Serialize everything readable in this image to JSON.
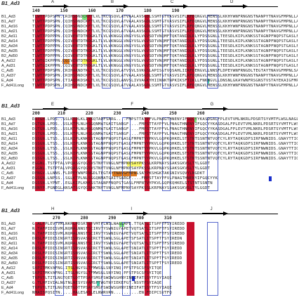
{
  "blocks": [
    {
      "ref_label": "B1_Ad3",
      "ss_labels": [
        "A",
        "B",
        "C",
        "D"
      ],
      "numbers": "140        150        160        170        180        190",
      "rows": [
        {
          "name": "B1_Ad3",
          "seq": "TLWTTPDPSPN.CRIHSDNDCKFTLVLTKCGSQVLATVAALAVSGDLSSMTGTVASVSIFLRFDQNGVLMENSSLKKHYWNFRNGNSTNANPYTNAVGFMPNLLAYPKTQSQTAKNNIVSQVYLHGDKTKPMILTITLNGTSESTETSEVSTYSMSFTWSWESGKYTTETFATNSYTFSYIAQE"
        },
        {
          "name": "B1_Ad7",
          "seq": "TLWTTPDPSPN.CQIHSDNDCKFTLVLTKCGSQVLATVAALAVSGDLSSMTGTVASVSIFLRFDQNGVLMENSSLKKHYWNFRNGNSTNANPYTNAVGFMPNLLAYPKTQSQTAKNNIVSQVYLHGDKTKPMILTITLNGTSESTETSEVSTYSMSFTWSWESGKYTTETFATNSYTFSYIAQE"
        },
        {
          "name": "B1_Ad16",
          "seq": "TLWTTPDPSPN.CQIHSDNDCKFTLVLTKCGSQVLATVAALAVSGDLSSMTGTVASVSIFLRFDQNGVLMENSSLKKHYWNFRNGNSTNANPYTNAVGFMPNLLAYPKTQSQTAKNNIVSQVYLHGDKTKPMILTITLNGTSESTETSEVSTYSMSFTWSWESGKYTTETFATNSYTFSYIAQE"
        },
        {
          "name": "B1_Ad21",
          "seq": "TLWTTPDPSPN.CQIHSDNDCKFTLVLTKCGSQVLATVAALAVSGDLSSMTGTVASVSIFLRFDQNGVLMENSSLKKHYWNFRNGNSTNANPYTNAVGFMPNLLAYPKTQSQTAKNNIVSQVYLHGDKTKPMILTITLNGTSESTETSEVSTYSMSFTWSWESGKYTTETFATNSYTFSYIAQE"
        },
        {
          "name": "B2_Ad11",
          "seq": "TLWTTPDPPPN.CQIVENTDTNDGKLTLVLVKNGGLVNGYVSLVGVSDTVNQMFTQKTANIQLRLYFDSSGNLLTEESDLKIPLKNKSSTAGNPFNQPSTGASLFMPNTVYPKVLGQPKQHKEL"
        },
        {
          "name": "B2_Ad14",
          "seq": "TLWTTPDPPPN.CQIVENTDTNDGKLTLVLVKNGGLVNGYVSLVGVSDTVNQMFTQKTANIQLRLYFDSSGNLLTEESDLKIPLKNKSSTAGNPFNQPSTGASLFMPNTVYPKVLGQPKQHKEL"
        },
        {
          "name": "B2_Ad34",
          "seq": "TLWTTPDPPPN.CQIVENTDTNDGKLTLVLVKNGGLVNGYVSLVGVSDTVNQMFTQKTANIQLRLYFDSSGNLLTEESDLKIPLKNKSSTAGNPFNQPSTGASLFMPNTVYPKVLGQPKQHKEL"
        },
        {
          "name": "B2_Ad35",
          "seq": "TLWTTPDPPPN.CQIVENTDTNDGKLTLVLVKNGGLVNGYVSLVGVSDTVNQMFTQKTANIQLRLYFDSSGNLLTEESDLKIPLKNKSSTAGNPFNQPSTGASLFMPNTVYPKVLGQPKQHKEL"
        },
        {
          "name": "B2_Ad50",
          "seq": "TLWTTPDPPPN.CQIVENTDTNDGKLTLVLVKNGGLVNGYVSLVGVSDTVNQMFTQKTANIQLRLYFDSSGNLLTEESDLKIPLKNKSSTAGNPFNQPSTGASLFMPNTVYPKVLGQPKQHKEL"
        },
        {
          "name": "A_Ad12",
          "seq": "TLWTGIKPPPN.CQIVENTDTNDGKLTLVLVKNGGLVNGYVSLVGVSDTVNQMFTQKTANIQLRLYFDSSGNLLTEESDLKIPLKNKSSTAGNPFNQPSTGASLFMPNTVYPKVLGQPKQHKEL"
        },
        {
          "name": "A_Ad31",
          "seq": "TLWTGIKPPPN.CQIVENTDTNDGKLTLVLVKNGGLVNGYVSLVGVSDTVNQMFTQKTANIQLRLYFDSSGNLLTEESDLKIPLKNKSSTAGNPFNQPSTGASLFMPNTVYPKVLGQPKQHKEL"
        },
        {
          "name": "C_Ad5",
          "seq": "TLWTTPDPSPN.CRIHAKNDTKLTLVLTKCGSQVLATVSVLSVKGSLAPISGTVQSAHLIIRFDENGVLLNNSFLDPEYWNFRNGDLTEGTAYTNAVGFMPNLSAYPKSHGKTAKSNIVSQVYLNGDKTKPVTLTITLNGTQETGDTTPSAYSMSFSWDWSGHNYINEIFATSSYTFSYIAQE"
        },
        {
          "name": "D_Ad37",
          "seq": "TLWTTPDPSPN.CRIHSDNDCKFTLVLTKCGSQVLATVAALAVSGDLSSMTGTVASVSIFLRFDQNGVLMENSSLKKHYWNFRNGNSTNANPYTNAVGFMPNLLAYPKTQSQTAKNNIVSQVYLHGDKTKPMILTITLNGTSESTETSEVSTYSMSFTWSWESGKYTTETFATNSYTFSYIAQE"
        },
        {
          "name": "E_Ad4",
          "seq": "TLWTTPDPSPN.CTIAQDKDSKLTLVLTKCGSQILANVSLIVVAGKYHIINNKTNPKIKSFTIKLLFNKNGVLLDNSNLGKAYWNFRSGNSTVSTAYEKAIGFMPNLVAYPKPSNSKKYARDIVYGTIYLGGKPDQPAVIKTTFNQETGCEYSITFNFSWSKTYENVEFETTSFTFSYIAQE"
        },
        {
          "name": "F_Ad41Long",
          "seq": "TLWTTPDPSPN.CRIHSDNDCKFTLVLTKCGSQVLATVAALAVSGDLSSMTGTVASVSIFLRFDQNGVLMENSSLKKHYWNFRNGNSTNANPYTNAVGFMPNLLAYPKTQSQTAKNNIVSQVYLHGDKTKPMILTITLNGTSESTETSEVSTYSMSFTWSWESGKYTTETFATNSYTFSYIAQE"
        }
      ]
    },
    {
      "ref_label": "B1_Ad3",
      "ss_labels": [
        "E",
        "F",
        "G"
      ],
      "numbers": "200       210        220        230        240        250        260",
      "rows": [
        {
          "name": "B1_Ad3",
          "seq": "DATGH.LPDS..SSLKTDLKLIYKQTADFSARG....FMPSTTAYPFVLPNAGTHNENYIFGQCYYKASDGALFPLEVTVMLNKRLPDSRTSYVMTFLWSLNAGLAPETTQATLITSPFTFSYIREDD"
        },
        {
          "name": "B1_Ad7",
          "seq": "DGTGN.LPDS..SSLKTPLNLHSGQNMATGAITSARGF....FMPSTTAYPFVLPNAGTHNENYIFGQCYYKASDGALFPLEVTVMLNKRLPDSRTSYVMTFLWSLNAGLAPETTQATLITSPFTFSYIREDD"
        },
        {
          "name": "B1_Ad16",
          "seq": "DGTGN.LPDS..SSLKTPLNLHSGQNMATGAITSARGF....FMPSTTAYPFVLPNAGTHNENYIFGQCYYKASDGALFPLEVTVMLNKRLPDSRTSYVMTFLWSLNAGLAPETTQATLITSPFTFSYIREDD"
        },
        {
          "name": "B1_Ad21",
          "seq": "DSTGN.LPDS..SSLKTPLNLHSGQNMATGAITSARGF....FMPSTTAYPFVLPNAGTHNENYIFGQCYYKASDGALFPLEVTVMLNKRLPDSRTSYVMTFLWSLNAGLAPETTQATLITSPFTFSYIREDN"
        },
        {
          "name": "B2_Ad11",
          "seq": "DSSGN.LTSS..SSLKIPLKNKSSTAGNPFNQPSTGASLFMPNTVYPKVLGQPKQHKELSTSTNTSSNTNTVQTCYLRYTAQKGDFSIRFNWNIDS.GNAYTTIGTIGGLTSKVT"
        },
        {
          "name": "B2_Ad14",
          "seq": "DSSGN.LTSS..SSLKIPLKNKSSTAGNPFNQPSTGASLFMPNTVYPKVLGQPKQHKELSTSTNTSSNTNTVQTCYLRYTAQKGDFSIRFNWNIDS.GNAYTTIGTIGGLTSKVT"
        },
        {
          "name": "B2_Ad34",
          "seq": "DSSGN.LTSS..SSLKIPLKNKSSTAGNPFNQPSTGASLFMPNTVYPKVLGQPKQHKELSTSTNTSSNTNTVQTCYLRYTAQKGDFSIRFNWNIDS.GNAYTTIGTIGGLTSKVT"
        },
        {
          "name": "B2_Ad35",
          "seq": "DSSGN.LTSS..SSLKIPLKNKSSTAGNPFNQPSTGASLFMPNTVYPKVLGQPKQHKELSTSTNTSSNTNTVQTCYLRYTAQKGDFSIRFNWNIDS.GNAYTTIGTIGGLTSKVT"
        },
        {
          "name": "B2_Ad50",
          "seq": "DSSGN.LTSS..SSLKIPLKNKSSTAGNPFNQPSTGASLFMPNTVYPKVLGQPKQHKELSTSTNTSSNTNTVQTCYLRYTAQKGDFSIRFNWNIDS.GNAYTTIGTIGGLTSKVT"
        },
        {
          "name": "A_Ad12",
          "seq": "EGGNL.TSTPTALVPQASGYQGSVSTNVTVNGLNFMPNVSAYPKSSLKRPNAYSSAKSGKVSLTYLGGDT"
        },
        {
          "name": "A_Ad31",
          "seq": "EGGNL.TSTPTALVPQASGYQGSVSTNVTVNGLNFMPNVSAYPKSSLKRPNAYSSAKSGKVSLTYLGGDT"
        },
        {
          "name": "C_Ad5",
          "seq": "DENGV.LLNNS.FLDPEYWNFRNGDLTEGTAYTNAVGFMPNLSAYPKSHGKTAKSNIVSQVYLNGDKT"
        },
        {
          "name": "D_Ad37",
          "seq": "DGSGN.LNPSS..SGLKTPLNLSSGQNMATGAITSARGF....FMPSTTAYPFVLPNAGTHNENYIFGQCYYK"
        },
        {
          "name": "E_Ad4",
          "seq": "DGSSN.LYPNT..EGLKIPLKNKSSTAGNPFNQPSTGASLFMPNTVYPKVLGQPKQHKELSTSTNTSSNTN"
        },
        {
          "name": "F_Ad41Long",
          "seq": "RKNYP.FGNEGLANSATSGYQGSAKTNVTVNGLNFMPNVSAYPKSSLKRPNAYSSAKSGKVSLTYLGGDT"
        }
      ]
    },
    {
      "ref_label": "B1_Ad3",
      "ss_labels": [
        "H",
        "I",
        "J"
      ],
      "numbers": "        270        280        290        300        310",
      "rows": [
        {
          "name": "B1_Ad3",
          "seq": "G.ALFPLEVTVMLNKRLPDSRTSYVMTFLWSLNAGLAPE.TTQATLITSPFTFSYIREDD"
        },
        {
          "name": "B1_Ad7",
          "seq": "N.TAFPIDISVMLNQRALNNSTSCIRVTYSWNIGYAPETVQTSATLITSPFTFSYIREDD"
        },
        {
          "name": "B1_Ad16",
          "seq": "N.TAFPIDISVMLNQRALNNSTSCIRVTYSWNIGYAPETVQTSATLITSPFTFSYIREDD"
        },
        {
          "name": "B1_Ad21",
          "seq": "DRSLFPIDISINSRTISNSVASGIRCTYSWNLSGLAPETSFSATLITSPFTFSYIREDN"
        },
        {
          "name": "B2_Ad11",
          "seq": "N.TAFPIDISVMLNQRALNNSTSCIRVTYSWNIGYAPETVQTSATLITSPFTFSYIREDD"
        },
        {
          "name": "B2_Ad14",
          "seq": "DRSLFPIDISINSRTISNSVASGIRCTYSWNLSGLAPETSNIATLITSPFTFSYIREDD"
        },
        {
          "name": "B2_Ad34",
          "seq": "DRSLFPIDISINSRTISNSVASGIRCTYSWNLSGLAPETSNIATLITSPFTFSYIREDD"
        },
        {
          "name": "B2_Ad35",
          "seq": "DRSLFPIDISINSRTISNSVASGIRCTYSWNLSGLAPETSNIATLITSPFTFSYIREDD"
        },
        {
          "name": "B2_Ad50",
          "seq": "DRSLFPIDISINSRTISNSVASGIRCTYSWNLSGLAPETSNIATLITSPFTFSYIREDD"
        },
        {
          "name": "A_Ad12",
          "seq": "SKPITMKVAFNG.ITSLNGYSLTFMWSGLSNYINQ.PFSTPSCSFSYITQE"
        },
        {
          "name": "A_Ad31",
          "seq": "SKPITMKVAFNG.ITSLNGYSLTFMWSGLSNYINQ.PFSTPSCSFSYITQE"
        },
        {
          "name": "C_Ad5",
          "seq": "TKPVTLTITLNGTQETGDTTPSAYSMSFSWDWSGHNYINEIFATSSYTFSYIAQE"
        },
        {
          "name": "D_Ad37",
          "seq": "G.TLHFIVIALNGTNLNESYSYAMSFTWGTNYIEKEFGT.NSVTFSYIAQE"
        },
        {
          "name": "E_Ad4",
          "seq": "TKPVTLTITLNGTQETGDTTPSAYSMSFSWDWSGHNYINEIFATSSYTFSYIAQE"
        },
        {
          "name": "F_Ad41Long",
          "seq": "NMAISPQSITN.....HALESASLELNWRVRN..........EN.FDIPCSVTFQ"
        }
      ]
    }
  ]
}
